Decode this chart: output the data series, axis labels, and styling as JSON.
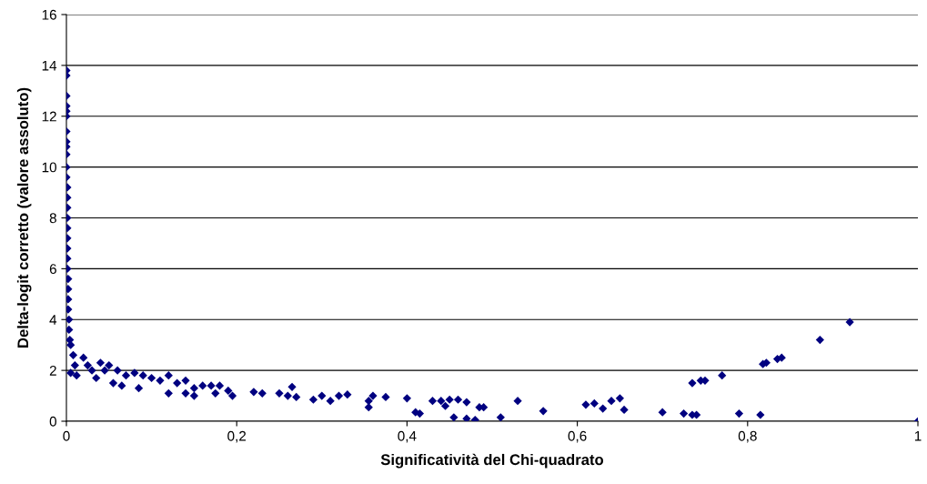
{
  "chart_data": {
    "type": "scatter",
    "xlabel": "Significatività del Chi-quadrato",
    "ylabel": "Delta-logit corretto (valore assoluto)",
    "xlim": [
      0,
      1
    ],
    "ylim": [
      0,
      16
    ],
    "xticks": [
      0,
      {
        "value": 0.2,
        "label": "0,2"
      },
      {
        "value": 0.4,
        "label": "0,4"
      },
      {
        "value": 0.6,
        "label": "0,6"
      },
      {
        "value": 0.8,
        "label": "0,8"
      },
      1
    ],
    "yticks": [
      0,
      2,
      4,
      6,
      8,
      10,
      12,
      14,
      16
    ],
    "grid": "y",
    "marker": "diamond",
    "legend": false,
    "series": [
      {
        "color": "#000080",
        "x": [
          0.0,
          0.0,
          0.0,
          0.0,
          0.0,
          0.0,
          0.0,
          0.0,
          0.0,
          0.0,
          0.0,
          0.0,
          0.001,
          0.001,
          0.001,
          0.001,
          0.001,
          0.001,
          0.001,
          0.001,
          0.001,
          0.002,
          0.002,
          0.002,
          0.002,
          0.003,
          0.003,
          0.004,
          0.005,
          0.008,
          0.01,
          0.005,
          0.012,
          0.02,
          0.025,
          0.03,
          0.035,
          0.04,
          0.045,
          0.05,
          0.055,
          0.06,
          0.065,
          0.07,
          0.08,
          0.085,
          0.09,
          0.1,
          0.11,
          0.12,
          0.12,
          0.13,
          0.14,
          0.14,
          0.15,
          0.15,
          0.16,
          0.17,
          0.175,
          0.18,
          0.19,
          0.195,
          0.22,
          0.23,
          0.25,
          0.26,
          0.265,
          0.27,
          0.29,
          0.3,
          0.31,
          0.32,
          0.33,
          0.355,
          0.36,
          0.355,
          0.375,
          0.4,
          0.41,
          0.415,
          0.43,
          0.44,
          0.445,
          0.45,
          0.455,
          0.46,
          0.47,
          0.47,
          0.48,
          0.485,
          0.49,
          0.51,
          0.53,
          0.56,
          0.61,
          0.62,
          0.63,
          0.64,
          0.65,
          0.655,
          0.7,
          0.725,
          0.735,
          0.74,
          0.735,
          0.745,
          0.75,
          0.77,
          0.79,
          0.815,
          0.818,
          0.822,
          0.835,
          0.84,
          0.885,
          0.92,
          1.0
        ],
        "values": [
          13.8,
          13.6,
          12.8,
          12.4,
          12.2,
          12.0,
          11.4,
          11.0,
          10.8,
          10.5,
          10.0,
          9.6,
          9.2,
          8.8,
          8.4,
          8.0,
          7.6,
          7.2,
          6.8,
          6.4,
          6.0,
          5.6,
          5.2,
          4.8,
          4.4,
          4.0,
          3.6,
          3.2,
          3.0,
          2.6,
          2.2,
          1.9,
          1.8,
          2.5,
          2.2,
          2.0,
          1.7,
          2.3,
          2.0,
          2.2,
          1.5,
          2.0,
          1.4,
          1.8,
          1.9,
          1.3,
          1.8,
          1.7,
          1.6,
          1.8,
          1.1,
          1.5,
          1.6,
          1.1,
          1.3,
          1.0,
          1.4,
          1.4,
          1.1,
          1.4,
          1.2,
          1.0,
          1.15,
          1.1,
          1.1,
          1.0,
          1.35,
          0.95,
          0.85,
          1.0,
          0.8,
          1.0,
          1.05,
          0.8,
          1.0,
          0.55,
          0.95,
          0.9,
          0.35,
          0.3,
          0.8,
          0.8,
          0.6,
          0.85,
          0.15,
          0.85,
          0.75,
          0.1,
          0.05,
          0.55,
          0.55,
          0.15,
          0.8,
          0.4,
          0.65,
          0.7,
          0.5,
          0.8,
          0.9,
          0.45,
          0.35,
          0.3,
          0.25,
          0.25,
          1.5,
          1.6,
          1.6,
          1.8,
          0.3,
          0.25,
          2.25,
          2.3,
          2.45,
          2.5,
          3.2,
          3.9,
          0.0
        ]
      }
    ]
  }
}
